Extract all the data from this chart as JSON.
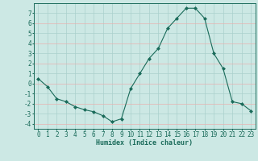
{
  "title": "",
  "xlabel": "Humidex (Indice chaleur)",
  "x_values": [
    0,
    1,
    2,
    3,
    4,
    5,
    6,
    7,
    8,
    9,
    10,
    11,
    12,
    13,
    14,
    15,
    16,
    17,
    18,
    19,
    20,
    21,
    22,
    23
  ],
  "y_values": [
    0.5,
    -0.3,
    -1.5,
    -1.8,
    -2.3,
    -2.6,
    -2.8,
    -3.2,
    -3.8,
    -3.5,
    -0.5,
    1.0,
    2.5,
    3.5,
    5.5,
    6.5,
    7.5,
    7.5,
    6.5,
    3.0,
    1.5,
    -1.8,
    -2.0,
    -2.7
  ],
  "ylim": [
    -4.5,
    8.0
  ],
  "xlim": [
    -0.5,
    23.5
  ],
  "yticks": [
    -4,
    -3,
    -2,
    -1,
    0,
    1,
    2,
    3,
    4,
    5,
    6,
    7
  ],
  "xticks": [
    0,
    1,
    2,
    3,
    4,
    5,
    6,
    7,
    8,
    9,
    10,
    11,
    12,
    13,
    14,
    15,
    16,
    17,
    18,
    19,
    20,
    21,
    22,
    23
  ],
  "line_color": "#1a6b5a",
  "marker": "D",
  "marker_size": 2.0,
  "bg_color": "#cce8e4",
  "grid_color_main": "#aad0cc",
  "grid_color_red": "#e8b0b0",
  "axis_label_color": "#1a6b5a",
  "tick_color": "#1a6b5a",
  "spine_color": "#1a6b5a",
  "xlabel_fontsize": 6.0,
  "tick_fontsize": 5.5
}
